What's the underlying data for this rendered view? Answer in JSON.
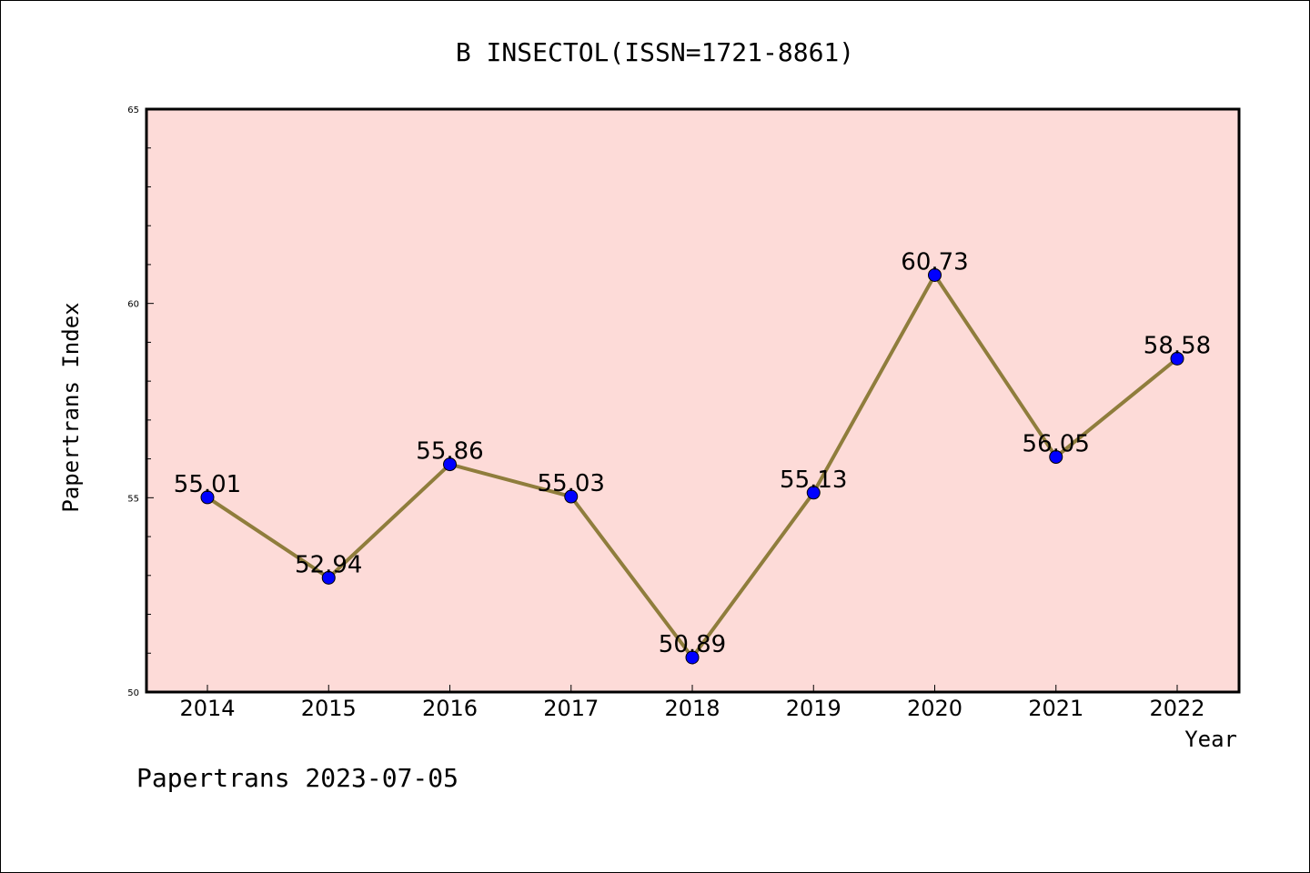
{
  "chart_data": {
    "type": "line",
    "title": "B INSECTOL(ISSN=1721-8861)",
    "xlabel": "Year",
    "ylabel": "Papertrans Index",
    "categories": [
      "2014",
      "2015",
      "2016",
      "2017",
      "2018",
      "2019",
      "2020",
      "2021",
      "2022"
    ],
    "values": [
      55.01,
      52.94,
      55.86,
      55.03,
      50.89,
      55.13,
      60.73,
      56.05,
      58.58
    ],
    "data_labels": [
      "55.01",
      "52.94",
      "55.86",
      "55.03",
      "50.89",
      "55.13",
      "60.73",
      "56.05",
      "58.58"
    ],
    "ylim": [
      50,
      65
    ],
    "yticks": [
      "50",
      "55",
      "60",
      "65"
    ],
    "grid": false,
    "legend": "none",
    "colors": {
      "background": "#fddbd8",
      "line": "#8f7d3c",
      "marker": "#0000ff"
    }
  },
  "footer": {
    "text": "Papertrans 2023-07-05"
  }
}
